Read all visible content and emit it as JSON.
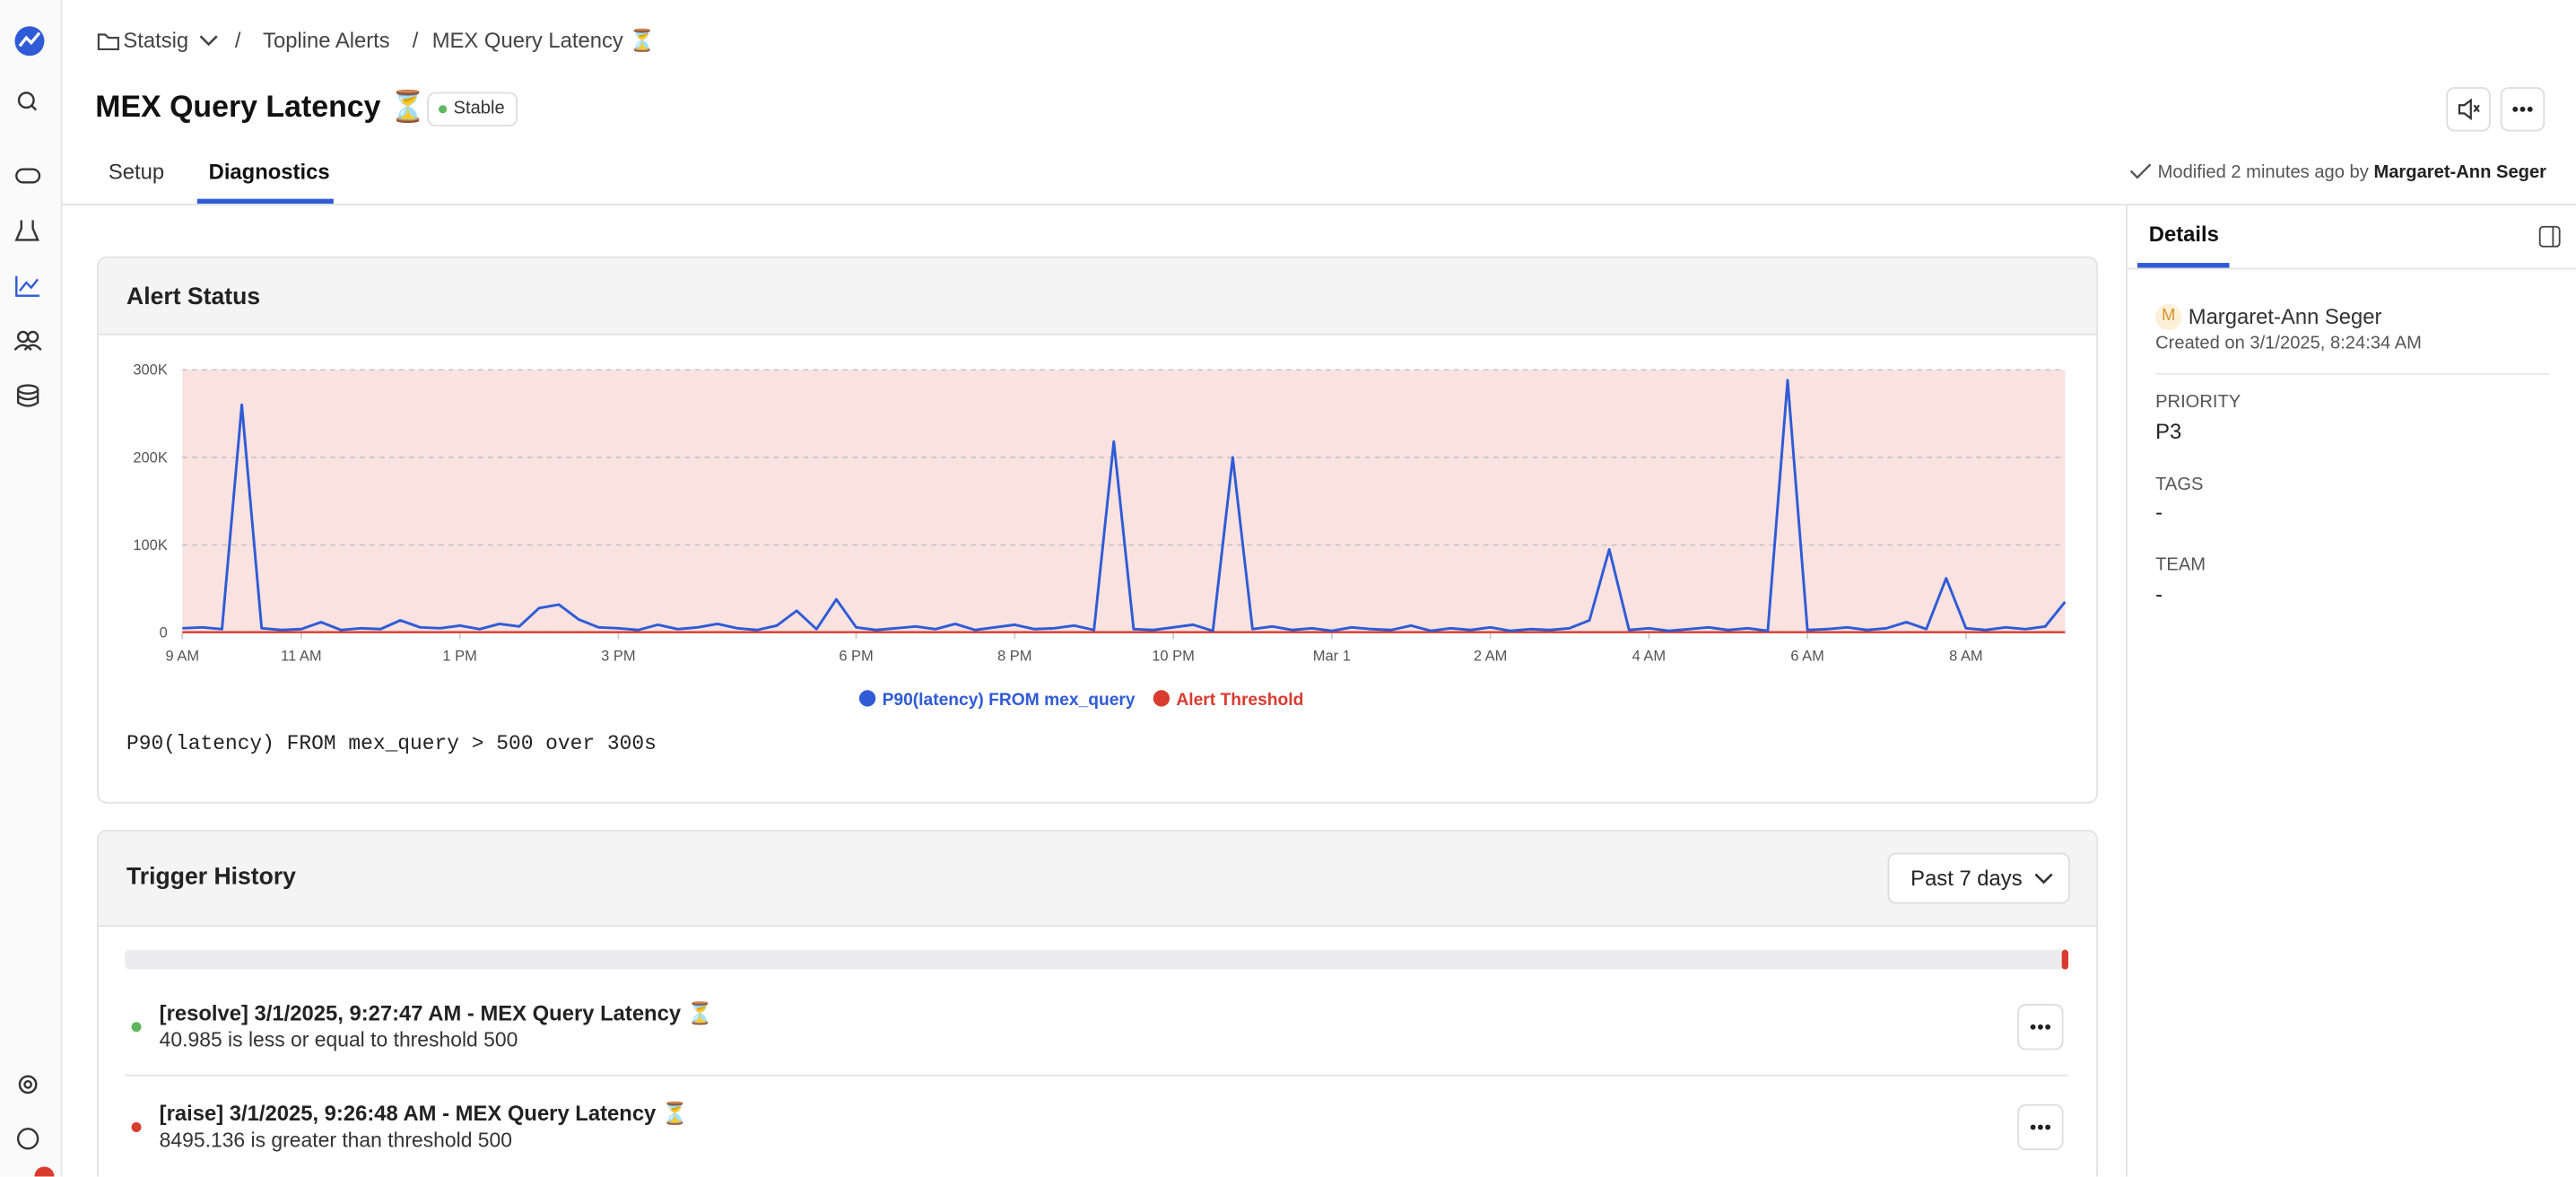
{
  "breadcrumb": [
    "Statsig",
    "Topline Alerts",
    "MEX Query Latency ⏳"
  ],
  "header": {
    "title": "MEX Query Latency ⏳",
    "status": "Stable"
  },
  "tabs": [
    "Setup",
    "Diagnostics"
  ],
  "modified": {
    "text": "Modified 2 minutes ago by",
    "user": "Margaret-Ann Seger"
  },
  "alert_status": {
    "title": "Alert Status",
    "query": "P90(latency) FROM mex_query > 500 over 300s"
  },
  "chart_data": {
    "type": "line",
    "categories": [
      "9 AM",
      null,
      null,
      null,
      null,
      null,
      "11 AM",
      null,
      null,
      null,
      null,
      null,
      null,
      null,
      "1 PM",
      null,
      null,
      null,
      null,
      null,
      null,
      null,
      "3 PM",
      null,
      null,
      null,
      null,
      null,
      null,
      null,
      null,
      null,
      null,
      null,
      "6 PM",
      null,
      null,
      null,
      null,
      null,
      null,
      null,
      "8 PM",
      null,
      null,
      null,
      null,
      null,
      null,
      null,
      "10 PM",
      null,
      null,
      null,
      null,
      null,
      null,
      null,
      "Mar 1",
      null,
      null,
      null,
      null,
      null,
      null,
      null,
      "2 AM",
      null,
      null,
      null,
      null,
      null,
      null,
      null,
      "4 AM",
      null,
      null,
      null,
      null,
      null,
      null,
      null,
      "6 AM",
      null,
      null,
      null,
      null,
      null,
      null,
      null,
      "8 AM",
      null,
      null,
      null,
      null,
      null
    ],
    "series": [
      {
        "name": "P90(latency) FROM mex_query",
        "color": "#2f5bd6",
        "values": [
          5000,
          6000,
          4000,
          260000,
          5000,
          3000,
          4000,
          12000,
          3000,
          5000,
          4000,
          14000,
          6000,
          5000,
          8000,
          4000,
          10000,
          7000,
          28000,
          32000,
          15000,
          6000,
          5000,
          3000,
          9000,
          4000,
          6000,
          10000,
          5000,
          3000,
          8000,
          25000,
          4000,
          38000,
          6000,
          3000,
          5000,
          7000,
          4000,
          10000,
          3000,
          6000,
          9000,
          4000,
          5000,
          8000,
          3000,
          218000,
          4000,
          3000,
          6000,
          9000,
          2000,
          200000,
          4000,
          7000,
          3000,
          5000,
          2000,
          6000,
          4000,
          3000,
          8000,
          2000,
          5000,
          3000,
          6000,
          2000,
          4000,
          3000,
          5000,
          14000,
          95000,
          3000,
          5000,
          2000,
          4000,
          6000,
          3000,
          5000,
          2000,
          288000,
          3000,
          4000,
          6000,
          3000,
          5000,
          12000,
          4000,
          62000,
          5000,
          3000,
          6000,
          4000,
          7000,
          35000
        ]
      },
      {
        "name": "Alert Threshold",
        "color": "#d93b2f",
        "values": [
          500,
          500,
          500,
          500,
          500,
          500,
          500,
          500,
          500,
          500,
          500,
          500,
          500,
          500,
          500,
          500,
          500,
          500,
          500,
          500,
          500,
          500,
          500,
          500,
          500,
          500,
          500,
          500,
          500,
          500,
          500,
          500,
          500,
          500,
          500,
          500,
          500,
          500,
          500,
          500,
          500,
          500,
          500,
          500,
          500,
          500,
          500,
          500,
          500,
          500,
          500,
          500,
          500,
          500,
          500,
          500,
          500,
          500,
          500,
          500,
          500,
          500,
          500,
          500,
          500,
          500,
          500,
          500,
          500,
          500,
          500,
          500,
          500,
          500,
          500,
          500,
          500,
          500,
          500,
          500,
          500,
          500,
          500,
          500,
          500,
          500,
          500,
          500,
          500,
          500,
          500,
          500,
          500,
          500,
          500,
          500
        ]
      }
    ],
    "ylim": [
      0,
      300000
    ],
    "yticks": [
      0,
      {
        "value": 100000,
        "label": "100K"
      },
      {
        "value": 200000,
        "label": "200K"
      },
      {
        "value": 300000,
        "label": "300K"
      }
    ],
    "grid": true
  },
  "trigger_history": {
    "title": "Trigger History",
    "range": "Past 7 days",
    "items": [
      {
        "title": "[resolve] 3/1/2025, 9:27:47 AM - MEX Query Latency ⏳",
        "detail": "40.985 is less or equal to threshold 500",
        "color": "#5cb85c"
      },
      {
        "title": "[raise] 3/1/2025, 9:26:48 AM - MEX Query Latency ⏳",
        "detail": "8495.136 is greater than threshold 500",
        "color": "#d93b2f"
      }
    ]
  },
  "details": {
    "tab": "Details",
    "avatar": "M",
    "owner": "Margaret-Ann Seger",
    "created": "Created on 3/1/2025, 8:24:34 AM",
    "fields": [
      {
        "label": "PRIORITY",
        "value": "P3"
      },
      {
        "label": "TAGS",
        "value": "-"
      },
      {
        "label": "TEAM",
        "value": "-"
      }
    ]
  }
}
